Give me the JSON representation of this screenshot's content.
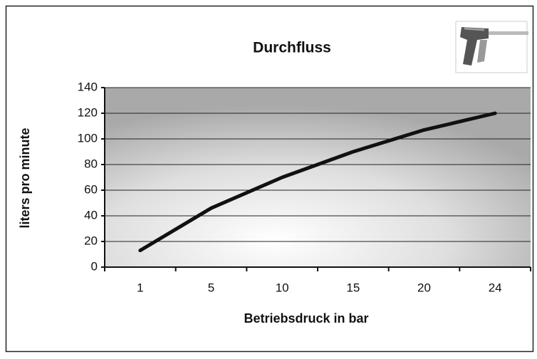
{
  "chart_data": {
    "type": "line",
    "title": "Durchfluss",
    "x_label": "Betriebsdruck in bar",
    "y_label": "liters pro minute",
    "categories": [
      "1",
      "5",
      "10",
      "15",
      "20",
      "24"
    ],
    "series": [
      {
        "name": "Durchfluss",
        "color": "#111111",
        "values": [
          13,
          46,
          70,
          90,
          107,
          120
        ]
      }
    ],
    "ylim": [
      0,
      140
    ],
    "yticks": [
      0,
      20,
      40,
      60,
      80,
      100,
      120,
      140
    ],
    "grid": true
  }
}
